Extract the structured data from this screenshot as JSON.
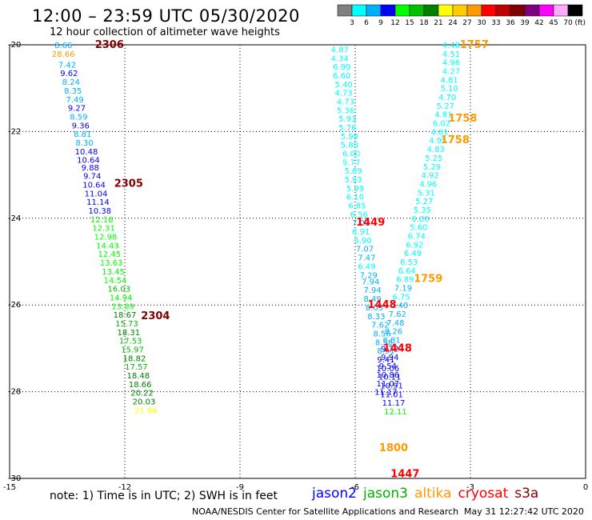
{
  "header": {
    "title": "12:00 – 23:59 UTC 05/30/2020",
    "subtitle": "12 hour collection of altimeter wave heights"
  },
  "colorbar": {
    "unit": "(ft)",
    "segments": [
      {
        "color": "#808080",
        "label": "3"
      },
      {
        "color": "#00ffff",
        "label": "6"
      },
      {
        "color": "#00b0ff",
        "label": "9"
      },
      {
        "color": "#0000ff",
        "label": "12"
      },
      {
        "color": "#00ff00",
        "label": "15"
      },
      {
        "color": "#00c000",
        "label": "18"
      },
      {
        "color": "#008000",
        "label": "21"
      },
      {
        "color": "#ffff00",
        "label": "24"
      },
      {
        "color": "#ffcc00",
        "label": "27"
      },
      {
        "color": "#ff9900",
        "label": "30"
      },
      {
        "color": "#ff0000",
        "label": "33"
      },
      {
        "color": "#c00000",
        "label": "36"
      },
      {
        "color": "#800000",
        "label": "39"
      },
      {
        "color": "#800080",
        "label": "42"
      },
      {
        "color": "#ff00ff",
        "label": "45"
      },
      {
        "color": "#ffaaff",
        "label": "70"
      },
      {
        "color": "#000000",
        "label": ""
      }
    ]
  },
  "footer": {
    "note": "note: 1) Time is in UTC; 2) SWH is in feet",
    "credit": "NOAA/NESDIS Center for Satellite Applications and Research",
    "timestamp": "May 31 12:27:42 UTC 2020"
  },
  "legend": [
    {
      "name": "jason2",
      "color": "#0000ff"
    },
    {
      "name": "jason3",
      "color": "#00b000"
    },
    {
      "name": "altika",
      "color": "#ff9900"
    },
    {
      "name": "cryosat",
      "color": "#ff0000"
    },
    {
      "name": "s3a",
      "color": "#800000"
    }
  ],
  "chart_data": {
    "type": "scatter",
    "title": "12:00 – 23:59 UTC 05/30/2020",
    "subtitle": "12 hour collection of altimeter wave heights",
    "xlim": [
      -15,
      0
    ],
    "ylim": [
      -30,
      -20
    ],
    "xticks": [
      "-15",
      "-12",
      "-9",
      "-6",
      "-3",
      "0"
    ],
    "yticks": [
      "-20",
      "-22",
      "-24",
      "-26",
      "-28",
      "-30"
    ],
    "grid": true,
    "points": [
      {
        "x": -13.6,
        "y": -20.0,
        "v": "8.66",
        "c": "#00b0ff"
      },
      {
        "x": -13.6,
        "y": -20.2,
        "v": "28.66",
        "c": "#ff9900"
      },
      {
        "x": -13.5,
        "y": -20.45,
        "v": "7.42",
        "c": "#00b0ff"
      },
      {
        "x": -13.45,
        "y": -20.65,
        "v": "9.62",
        "c": "#0000ff"
      },
      {
        "x": -13.4,
        "y": -20.85,
        "v": "8.24",
        "c": "#00b0ff"
      },
      {
        "x": -13.35,
        "y": -21.05,
        "v": "8.35",
        "c": "#00b0ff"
      },
      {
        "x": -13.3,
        "y": -21.25,
        "v": "7.49",
        "c": "#00b0ff"
      },
      {
        "x": -13.25,
        "y": -21.45,
        "v": "9.27",
        "c": "#0000ff"
      },
      {
        "x": -13.2,
        "y": -21.65,
        "v": "8.59",
        "c": "#00b0ff"
      },
      {
        "x": -13.15,
        "y": -21.85,
        "v": "9.36",
        "c": "#0000ff"
      },
      {
        "x": -13.1,
        "y": -22.05,
        "v": "8.81",
        "c": "#00b0ff"
      },
      {
        "x": -13.05,
        "y": -22.25,
        "v": "8.30",
        "c": "#00b0ff"
      },
      {
        "x": -13.0,
        "y": -22.45,
        "v": "10.48",
        "c": "#0000ff"
      },
      {
        "x": -12.95,
        "y": -22.65,
        "v": "10.64",
        "c": "#0000ff"
      },
      {
        "x": -12.9,
        "y": -22.82,
        "v": "9.88",
        "c": "#0000ff"
      },
      {
        "x": -12.85,
        "y": -23.02,
        "v": "9.74",
        "c": "#0000ff"
      },
      {
        "x": -12.8,
        "y": -23.22,
        "v": "10.64",
        "c": "#0000ff"
      },
      {
        "x": -12.75,
        "y": -23.42,
        "v": "11.04",
        "c": "#0000ff"
      },
      {
        "x": -12.7,
        "y": -23.62,
        "v": "11.14",
        "c": "#0000ff"
      },
      {
        "x": -12.65,
        "y": -23.82,
        "v": "10.38",
        "c": "#0000ff"
      },
      {
        "x": -12.6,
        "y": -24.02,
        "v": "12.16",
        "c": "#00ff00"
      },
      {
        "x": -12.55,
        "y": -24.22,
        "v": "12.31",
        "c": "#00ff00"
      },
      {
        "x": -12.5,
        "y": -24.42,
        "v": "12.98",
        "c": "#00ff00"
      },
      {
        "x": -12.45,
        "y": -24.62,
        "v": "14.43",
        "c": "#00ff00"
      },
      {
        "x": -12.4,
        "y": -24.82,
        "v": "12.45",
        "c": "#00ff00"
      },
      {
        "x": -12.35,
        "y": -25.02,
        "v": "13.63",
        "c": "#00ff00"
      },
      {
        "x": -12.3,
        "y": -25.22,
        "v": "13.45",
        "c": "#00ff00"
      },
      {
        "x": -12.25,
        "y": -25.42,
        "v": "14.54",
        "c": "#00ff00"
      },
      {
        "x": -12.15,
        "y": -25.62,
        "v": "16.03",
        "c": "#00c000"
      },
      {
        "x": -12.1,
        "y": -25.82,
        "v": "14.94",
        "c": "#00ff00"
      },
      {
        "x": -12.05,
        "y": -26.02,
        "v": "13.89",
        "c": "#00ff00"
      },
      {
        "x": -12.0,
        "y": -26.22,
        "v": "18.67",
        "c": "#008000"
      },
      {
        "x": -11.95,
        "y": -26.42,
        "v": "15.73",
        "c": "#00c000"
      },
      {
        "x": -11.9,
        "y": -26.62,
        "v": "18.31",
        "c": "#008000"
      },
      {
        "x": -11.85,
        "y": -26.82,
        "v": "17.53",
        "c": "#00c000"
      },
      {
        "x": -11.8,
        "y": -27.02,
        "v": "15.97",
        "c": "#00c000"
      },
      {
        "x": -11.75,
        "y": -27.22,
        "v": "18.82",
        "c": "#008000"
      },
      {
        "x": -11.7,
        "y": -27.42,
        "v": "17.57",
        "c": "#00c000"
      },
      {
        "x": -11.65,
        "y": -27.62,
        "v": "18.48",
        "c": "#008000"
      },
      {
        "x": -11.6,
        "y": -27.82,
        "v": "18.66",
        "c": "#008000"
      },
      {
        "x": -11.55,
        "y": -28.02,
        "v": "20.22",
        "c": "#008000"
      },
      {
        "x": -11.5,
        "y": -28.22,
        "v": "20.03",
        "c": "#008000"
      },
      {
        "x": -11.45,
        "y": -28.42,
        "v": "21.86",
        "c": "#ffff00"
      },
      {
        "x": -6.4,
        "y": -20.1,
        "v": "4.87",
        "c": "#00ffff"
      },
      {
        "x": -6.4,
        "y": -20.3,
        "v": "4.34",
        "c": "#00ffff"
      },
      {
        "x": -6.35,
        "y": -20.5,
        "v": "6.99",
        "c": "#00ffff"
      },
      {
        "x": -6.35,
        "y": -20.7,
        "v": "6.60",
        "c": "#00ffff"
      },
      {
        "x": -6.3,
        "y": -20.9,
        "v": "5.40",
        "c": "#00ffff"
      },
      {
        "x": -6.3,
        "y": -21.1,
        "v": "4.73",
        "c": "#00ffff"
      },
      {
        "x": -6.25,
        "y": -21.3,
        "v": "4.73",
        "c": "#00ffff"
      },
      {
        "x": -6.25,
        "y": -21.5,
        "v": "5.36",
        "c": "#00ffff"
      },
      {
        "x": -6.2,
        "y": -21.7,
        "v": "5.93",
        "c": "#00ffff"
      },
      {
        "x": -6.2,
        "y": -21.9,
        "v": "5.76",
        "c": "#00ffff"
      },
      {
        "x": -6.15,
        "y": -22.1,
        "v": "5.99",
        "c": "#00ffff"
      },
      {
        "x": -6.15,
        "y": -22.3,
        "v": "5.88",
        "c": "#00ffff"
      },
      {
        "x": -6.1,
        "y": -22.5,
        "v": "6.00",
        "c": "#00ffff"
      },
      {
        "x": -6.1,
        "y": -22.7,
        "v": "5.77",
        "c": "#00ffff"
      },
      {
        "x": -6.05,
        "y": -22.9,
        "v": "5.69",
        "c": "#00ffff"
      },
      {
        "x": -6.05,
        "y": -23.1,
        "v": "5.93",
        "c": "#00ffff"
      },
      {
        "x": -6.0,
        "y": -23.3,
        "v": "5.99",
        "c": "#00ffff"
      },
      {
        "x": -6.0,
        "y": -23.5,
        "v": "6.10",
        "c": "#00ffff"
      },
      {
        "x": -5.95,
        "y": -23.7,
        "v": "6.85",
        "c": "#00ffff"
      },
      {
        "x": -5.9,
        "y": -23.9,
        "v": "6.56",
        "c": "#00ffff"
      },
      {
        "x": -5.85,
        "y": -24.1,
        "v": "7.09",
        "c": "#00b0ff"
      },
      {
        "x": -5.85,
        "y": -24.3,
        "v": "6.91",
        "c": "#00ffff"
      },
      {
        "x": -5.8,
        "y": -24.5,
        "v": "6.90",
        "c": "#00ffff"
      },
      {
        "x": -5.75,
        "y": -24.7,
        "v": "7.07",
        "c": "#00b0ff"
      },
      {
        "x": -5.7,
        "y": -24.9,
        "v": "7.47",
        "c": "#00b0ff"
      },
      {
        "x": -5.7,
        "y": -25.1,
        "v": "6.49",
        "c": "#00ffff"
      },
      {
        "x": -5.65,
        "y": -25.3,
        "v": "7.29",
        "c": "#00b0ff"
      },
      {
        "x": -5.6,
        "y": -25.45,
        "v": "7.94",
        "c": "#00b0ff"
      },
      {
        "x": -5.55,
        "y": -25.65,
        "v": "7.94",
        "c": "#00b0ff"
      },
      {
        "x": -5.55,
        "y": -25.85,
        "v": "8.49",
        "c": "#00b0ff"
      },
      {
        "x": -5.5,
        "y": -26.05,
        "v": "8.03",
        "c": "#00b0ff"
      },
      {
        "x": -5.45,
        "y": -26.25,
        "v": "8.33",
        "c": "#00b0ff"
      },
      {
        "x": -5.35,
        "y": -26.45,
        "v": "7.62",
        "c": "#00b0ff"
      },
      {
        "x": -5.3,
        "y": -26.65,
        "v": "8.56",
        "c": "#00b0ff"
      },
      {
        "x": -5.25,
        "y": -26.85,
        "v": "8.58",
        "c": "#00b0ff"
      },
      {
        "x": -5.2,
        "y": -27.05,
        "v": "8.91",
        "c": "#00b0ff"
      },
      {
        "x": -5.2,
        "y": -27.25,
        "v": "9.41",
        "c": "#0000ff"
      },
      {
        "x": -5.15,
        "y": -27.45,
        "v": "10.06",
        "c": "#0000ff"
      },
      {
        "x": -5.1,
        "y": -27.65,
        "v": "10.11",
        "c": "#0000ff"
      },
      {
        "x": -5.05,
        "y": -27.85,
        "v": "10.91",
        "c": "#0000ff"
      },
      {
        "x": -5.05,
        "y": -28.05,
        "v": "11.01",
        "c": "#0000ff"
      },
      {
        "x": -5.0,
        "y": -28.25,
        "v": "11.17",
        "c": "#0000ff"
      },
      {
        "x": -4.95,
        "y": -28.45,
        "v": "12.11",
        "c": "#00ff00"
      },
      {
        "x": -3.5,
        "y": -20.0,
        "v": "4.48",
        "c": "#00ffff"
      },
      {
        "x": -3.5,
        "y": -20.2,
        "v": "4.51",
        "c": "#00ffff"
      },
      {
        "x": -3.5,
        "y": -20.4,
        "v": "4.96",
        "c": "#00ffff"
      },
      {
        "x": -3.5,
        "y": -20.6,
        "v": "4.27",
        "c": "#00ffff"
      },
      {
        "x": -3.55,
        "y": -20.8,
        "v": "4.81",
        "c": "#00ffff"
      },
      {
        "x": -3.55,
        "y": -21.0,
        "v": "5.10",
        "c": "#00ffff"
      },
      {
        "x": -3.6,
        "y": -21.2,
        "v": "4.70",
        "c": "#00ffff"
      },
      {
        "x": -3.65,
        "y": -21.4,
        "v": "5.27",
        "c": "#00ffff"
      },
      {
        "x": -3.7,
        "y": -21.6,
        "v": "4.81",
        "c": "#00ffff"
      },
      {
        "x": -3.75,
        "y": -21.8,
        "v": "6.02",
        "c": "#00ffff"
      },
      {
        "x": -3.8,
        "y": -22.0,
        "v": "4.81",
        "c": "#00ffff"
      },
      {
        "x": -3.85,
        "y": -22.2,
        "v": "4.95",
        "c": "#00ffff"
      },
      {
        "x": -3.9,
        "y": -22.4,
        "v": "4.83",
        "c": "#00ffff"
      },
      {
        "x": -3.95,
        "y": -22.6,
        "v": "5.25",
        "c": "#00ffff"
      },
      {
        "x": -4.0,
        "y": -22.8,
        "v": "5.29",
        "c": "#00ffff"
      },
      {
        "x": -4.05,
        "y": -23.0,
        "v": "4.92",
        "c": "#00ffff"
      },
      {
        "x": -4.1,
        "y": -23.2,
        "v": "4.96",
        "c": "#00ffff"
      },
      {
        "x": -4.15,
        "y": -23.4,
        "v": "5.31",
        "c": "#00ffff"
      },
      {
        "x": -4.2,
        "y": -23.6,
        "v": "5.27",
        "c": "#00ffff"
      },
      {
        "x": -4.25,
        "y": -23.8,
        "v": "5.35",
        "c": "#00ffff"
      },
      {
        "x": -4.3,
        "y": -24.0,
        "v": "6.00",
        "c": "#00ffff"
      },
      {
        "x": -4.35,
        "y": -24.2,
        "v": "5.60",
        "c": "#00ffff"
      },
      {
        "x": -4.4,
        "y": -24.4,
        "v": "6.74",
        "c": "#00ffff"
      },
      {
        "x": -4.45,
        "y": -24.6,
        "v": "6.92",
        "c": "#00ffff"
      },
      {
        "x": -4.5,
        "y": -24.8,
        "v": "6.49",
        "c": "#00ffff"
      },
      {
        "x": -4.6,
        "y": -25.0,
        "v": "6.53",
        "c": "#00ffff"
      },
      {
        "x": -4.65,
        "y": -25.2,
        "v": "6.64",
        "c": "#00ffff"
      },
      {
        "x": -4.7,
        "y": -25.4,
        "v": "6.89",
        "c": "#00ffff"
      },
      {
        "x": -4.75,
        "y": -25.6,
        "v": "7.19",
        "c": "#00b0ff"
      },
      {
        "x": -4.8,
        "y": -25.8,
        "v": "6.75",
        "c": "#00ffff"
      },
      {
        "x": -4.85,
        "y": -26.0,
        "v": "7.40",
        "c": "#00b0ff"
      },
      {
        "x": -4.9,
        "y": -26.2,
        "v": "7.62",
        "c": "#00b0ff"
      },
      {
        "x": -4.95,
        "y": -26.4,
        "v": "7.48",
        "c": "#00b0ff"
      },
      {
        "x": -5.0,
        "y": -26.6,
        "v": "8.26",
        "c": "#00b0ff"
      },
      {
        "x": -5.05,
        "y": -26.8,
        "v": "8.81",
        "c": "#00b0ff"
      },
      {
        "x": -5.1,
        "y": -27.0,
        "v": "9.72",
        "c": "#0000ff"
      },
      {
        "x": -5.1,
        "y": -27.2,
        "v": "9.94",
        "c": "#0000ff"
      },
      {
        "x": -5.15,
        "y": -27.4,
        "v": "9.54",
        "c": "#0000ff"
      },
      {
        "x": -5.15,
        "y": -27.6,
        "v": "10.86",
        "c": "#0000ff"
      },
      {
        "x": -5.15,
        "y": -27.8,
        "v": "11.07",
        "c": "#0000ff"
      },
      {
        "x": -5.2,
        "y": -28.0,
        "v": "11.17",
        "c": "#0000ff"
      },
      {
        "x": -12.4,
        "y": -20.0,
        "v": "2306",
        "c": "#800000",
        "big": true
      },
      {
        "x": -11.9,
        "y": -23.2,
        "v": "2305",
        "c": "#800000",
        "big": true
      },
      {
        "x": -11.2,
        "y": -26.25,
        "v": "2304",
        "c": "#800000",
        "big": true
      },
      {
        "x": -5.6,
        "y": -24.1,
        "v": "1449",
        "c": "#ff0000",
        "big": true
      },
      {
        "x": -5.3,
        "y": -26.0,
        "v": "1448",
        "c": "#ff0000",
        "big": true
      },
      {
        "x": -4.9,
        "y": -27.0,
        "v": "1448",
        "c": "#ff0000",
        "big": true
      },
      {
        "x": -4.7,
        "y": -29.9,
        "v": "1447",
        "c": "#ff0000",
        "big": true
      },
      {
        "x": -2.9,
        "y": -20.0,
        "v": "1757",
        "c": "#ff9900",
        "big": true
      },
      {
        "x": -3.2,
        "y": -21.7,
        "v": "1758",
        "c": "#ff9900",
        "big": true
      },
      {
        "x": -3.4,
        "y": -22.2,
        "v": "1758",
        "c": "#ff9900",
        "big": true
      },
      {
        "x": -4.1,
        "y": -25.4,
        "v": "1759",
        "c": "#ff9900",
        "big": true
      },
      {
        "x": -5.0,
        "y": -29.3,
        "v": "1800",
        "c": "#ff9900",
        "big": true
      }
    ]
  }
}
